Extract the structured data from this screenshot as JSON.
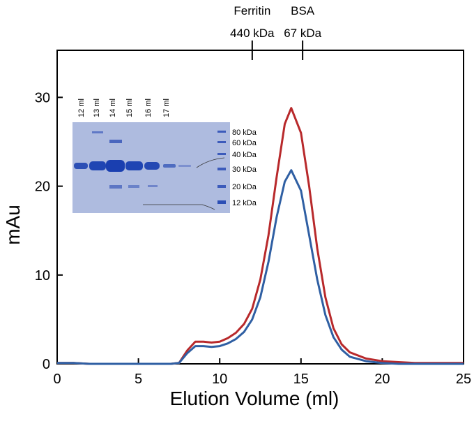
{
  "chart_data": {
    "type": "line",
    "xlabel": "Elution Volume (ml)",
    "ylabel": "mAu",
    "x": [
      0,
      1,
      1.5,
      2,
      3,
      4,
      5,
      6,
      7,
      7.5,
      8,
      8.5,
      9,
      9.5,
      10,
      10.5,
      11,
      11.5,
      12,
      12.5,
      13,
      13.5,
      14,
      14.4,
      15,
      15.5,
      16,
      16.5,
      17,
      17.5,
      18,
      19,
      20,
      21,
      22,
      23,
      24,
      25
    ],
    "series": [
      {
        "color": "#b8292b",
        "values": [
          0.1,
          0.1,
          0.05,
          0,
          0,
          0,
          0,
          0,
          0,
          0.1,
          1.5,
          2.5,
          2.5,
          2.4,
          2.5,
          2.9,
          3.5,
          4.5,
          6.2,
          9.5,
          14.5,
          21,
          27,
          28.8,
          26,
          20,
          13,
          7.5,
          4,
          2.2,
          1.3,
          0.6,
          0.3,
          0.2,
          0.1,
          0.1,
          0.1,
          0.1
        ]
      },
      {
        "color": "#2f5fa3",
        "values": [
          0.1,
          0.1,
          0.05,
          0,
          0,
          0,
          0,
          0,
          0,
          0.1,
          1.2,
          2,
          2,
          1.9,
          2,
          2.3,
          2.8,
          3.6,
          5,
          7.5,
          11.5,
          16.5,
          20.5,
          21.8,
          19.5,
          14.5,
          9.5,
          5.5,
          3,
          1.6,
          0.8,
          0.3,
          0.1,
          0,
          0,
          0,
          0,
          0
        ]
      }
    ],
    "xlim": [
      0,
      25
    ],
    "xticks": [
      0,
      5,
      10,
      15,
      20,
      25
    ],
    "ylim": [
      0,
      35.3
    ],
    "yticks": [
      0,
      10,
      20,
      30
    ],
    "top_markers": [
      {
        "label": "Ferritin",
        "mass": "440 kDa",
        "x": 12
      },
      {
        "label": "BSA",
        "mass": "67 kDa",
        "x": 15.1
      }
    ],
    "inset_lane_labels": [
      "12 ml",
      "13 ml",
      "14 ml",
      "15 ml",
      "16 ml",
      "17 ml"
    ],
    "inset_marker_labels": [
      "80 kDa",
      "60 kDa",
      "40 kDa",
      "30 kDa",
      "20 kDa",
      "12 kDa"
    ]
  }
}
